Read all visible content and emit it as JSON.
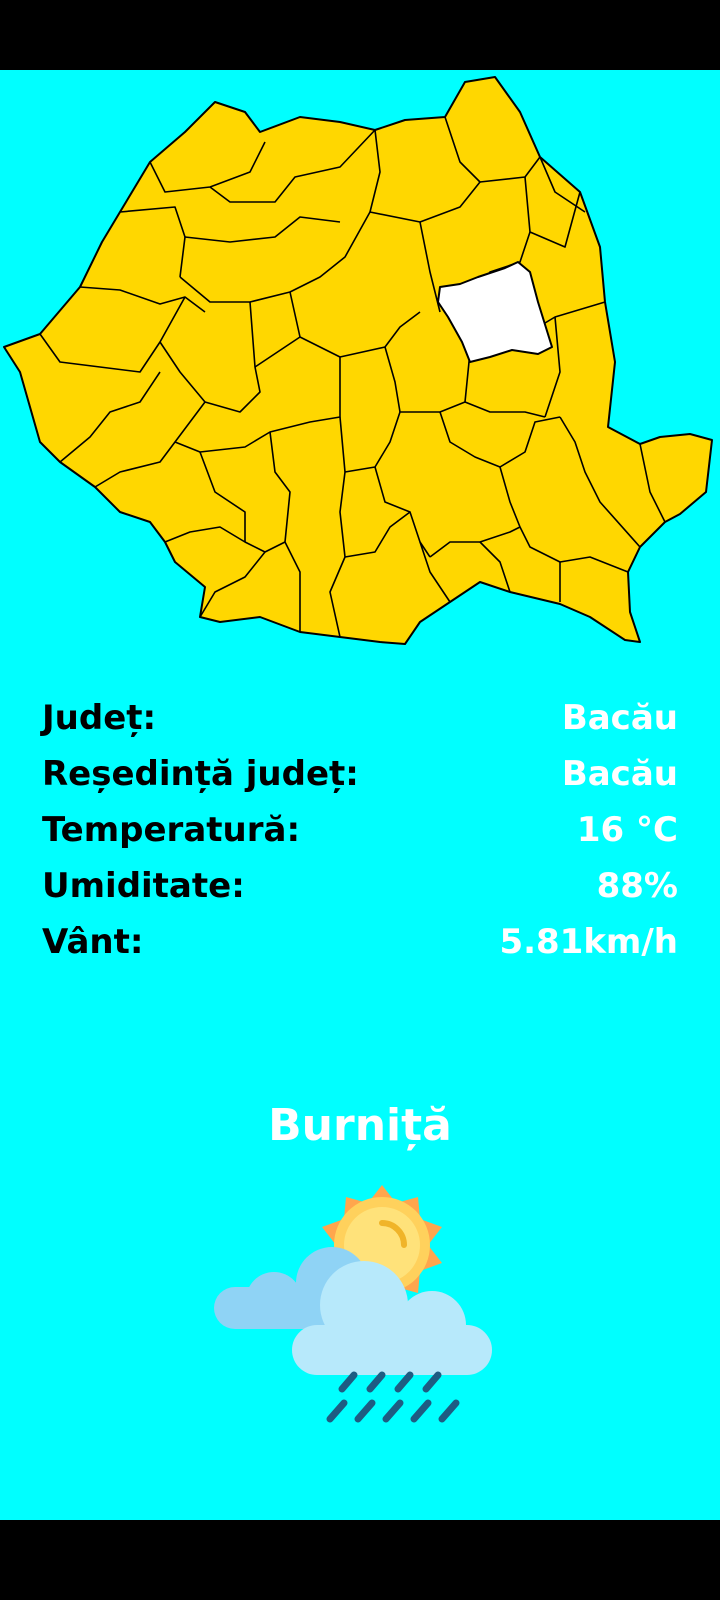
{
  "app": {
    "background_color": "#00FFFF",
    "map_fill_color": "#FFD700",
    "selected_county_color": "#FFFFFF"
  },
  "info": {
    "county": {
      "label": "Județ:",
      "value": "Bacău"
    },
    "seat": {
      "label": "Reședință județ:",
      "value": "Bacău"
    },
    "temperature": {
      "label": "Temperatură:",
      "value": "16 °C"
    },
    "humidity": {
      "label": "Umiditate:",
      "value": "88%"
    },
    "wind": {
      "label": "Vânt:",
      "value": "5.81km/h"
    }
  },
  "weather": {
    "condition": "Burniță",
    "icon": "sun-cloud-drizzle-icon"
  }
}
